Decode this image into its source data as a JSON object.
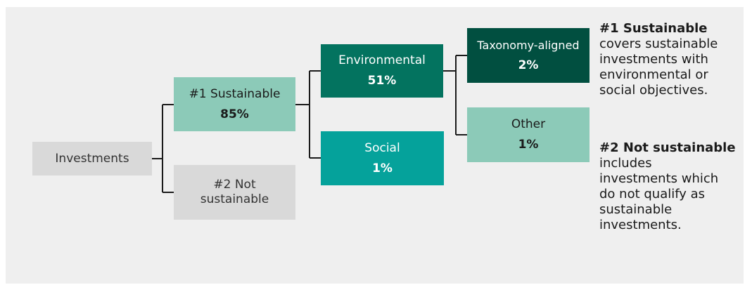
{
  "diagram": {
    "root": {
      "label": "Investments"
    },
    "sustainable": {
      "label": "#1 Sustainable",
      "value": "85%"
    },
    "not_sustainable": {
      "label_line1": "#2 Not",
      "label_line2": "sustainable"
    },
    "environmental": {
      "label": "Environmental",
      "value": "51%"
    },
    "social": {
      "label": "Social",
      "value": "1%"
    },
    "taxonomy_aligned": {
      "label": "Taxonomy-aligned",
      "value": "2%"
    },
    "other": {
      "label": "Other",
      "value": "1%"
    }
  },
  "legend": {
    "sustainable_heading": "#1 Sustainable",
    "sustainable_lines": [
      "covers sustainable",
      "investments with",
      "environmental or",
      "social objectives."
    ],
    "not_sustainable_heading": "#2 Not sustainable",
    "not_sustainable_lines": [
      "includes",
      "investments which",
      "do not qualify as",
      "sustainable",
      "investments."
    ]
  },
  "colors": {
    "panel_bg": "#efefef",
    "grey_box": "#d9d9d9",
    "light_teal": "#8ccab8",
    "dark_green": "#03735f",
    "darkest_green": "#014f40",
    "cyan_teal": "#05a29b",
    "connector": "#1a1a1a"
  }
}
